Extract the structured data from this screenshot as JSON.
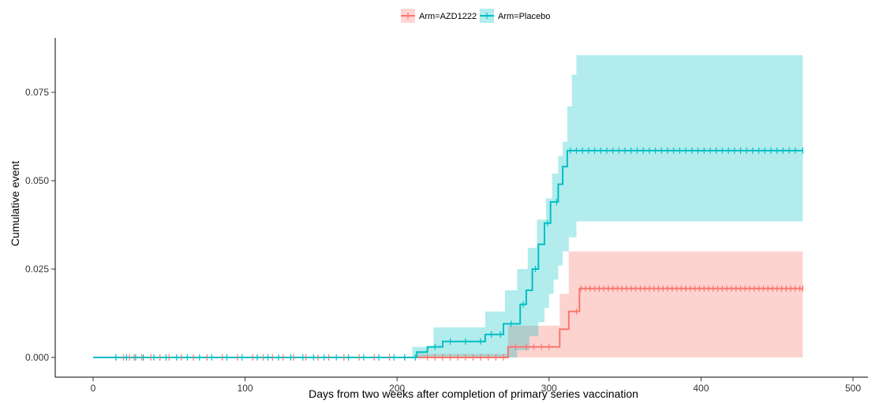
{
  "chart_data": {
    "type": "line",
    "xlabel": "Days from two weeks after completion of primary series vaccination",
    "ylabel": "Cumulative event",
    "xlim": [
      0,
      500
    ],
    "ylim": [
      0,
      0.085
    ],
    "x_ticks": [
      0,
      100,
      200,
      300,
      400,
      500
    ],
    "y_ticks": [
      0,
      0.025,
      0.05,
      0.075
    ],
    "x_tick_labels": [
      "0",
      "100",
      "200",
      "300",
      "400",
      "500"
    ],
    "y_tick_labels": [
      "0.000",
      "0.025",
      "0.050",
      "0.075"
    ],
    "grid": false,
    "legend_position": "top",
    "series": [
      {
        "name": "Arm=AZD1222",
        "color": "#F8766D",
        "steps": [
          [
            0,
            0
          ],
          [
            213,
            0
          ],
          [
            273,
            0.003
          ],
          [
            307,
            0.008
          ],
          [
            313,
            0.013
          ],
          [
            320,
            0.0195
          ],
          [
            467,
            0.0195
          ]
        ],
        "band_upper": [
          [
            0,
            0
          ],
          [
            213,
            0.001
          ],
          [
            273,
            0.009
          ],
          [
            307,
            0.018
          ],
          [
            313,
            0.03
          ],
          [
            467,
            0.03
          ]
        ],
        "band_lower": [
          [
            0,
            0
          ],
          [
            467,
            0
          ]
        ],
        "censor_x": [
          15,
          20,
          24,
          27,
          32,
          38,
          44,
          50,
          58,
          66,
          75,
          85,
          95,
          105,
          112,
          118,
          125,
          132,
          140,
          148,
          155,
          165,
          175,
          185,
          195,
          205,
          220,
          225,
          230,
          235,
          240,
          245,
          250,
          255,
          260,
          265,
          270,
          278,
          285,
          290,
          295,
          300,
          318,
          321,
          324,
          327,
          330,
          333,
          336,
          339,
          342,
          345,
          348,
          351,
          354,
          357,
          360,
          363,
          366,
          369,
          372,
          375,
          378,
          381,
          384,
          387,
          390,
          393,
          396,
          399,
          402,
          405,
          408,
          411,
          414,
          417,
          420,
          423,
          426,
          429,
          432,
          435,
          438,
          441,
          444,
          447,
          450,
          453,
          456,
          459,
          462,
          465,
          467
        ]
      },
      {
        "name": "Arm=Placebo",
        "color": "#00BFC4",
        "steps": [
          [
            0,
            0
          ],
          [
            213,
            0
          ],
          [
            213,
            0.0015
          ],
          [
            220,
            0.003
          ],
          [
            230,
            0.0045
          ],
          [
            258,
            0.0065
          ],
          [
            270,
            0.0095
          ],
          [
            278,
            0.0095
          ],
          [
            281,
            0.015
          ],
          [
            285,
            0.019
          ],
          [
            289,
            0.025
          ],
          [
            293,
            0.032
          ],
          [
            297,
            0.038
          ],
          [
            301,
            0.044
          ],
          [
            306,
            0.049
          ],
          [
            309,
            0.054
          ],
          [
            312,
            0.0585
          ],
          [
            467,
            0.0585
          ]
        ],
        "band_upper": [
          [
            0,
            0
          ],
          [
            210,
            0.003
          ],
          [
            224,
            0.0085
          ],
          [
            258,
            0.013
          ],
          [
            271,
            0.019
          ],
          [
            279,
            0.025
          ],
          [
            286,
            0.031
          ],
          [
            292,
            0.039
          ],
          [
            298,
            0.045
          ],
          [
            302,
            0.052
          ],
          [
            306,
            0.057
          ],
          [
            309,
            0.061
          ],
          [
            312,
            0.071
          ],
          [
            315,
            0.08
          ],
          [
            318,
            0.0855
          ],
          [
            467,
            0.0855
          ]
        ],
        "band_lower": [
          [
            0,
            0
          ],
          [
            278,
            0
          ],
          [
            279,
            0.002
          ],
          [
            287,
            0.006
          ],
          [
            293,
            0.01
          ],
          [
            297,
            0.014
          ],
          [
            300,
            0.018
          ],
          [
            303,
            0.022
          ],
          [
            306,
            0.026
          ],
          [
            309,
            0.03
          ],
          [
            313,
            0.034
          ],
          [
            318,
            0.0385
          ],
          [
            467,
            0.0385
          ]
        ],
        "censor_x": [
          15,
          22,
          28,
          33,
          40,
          48,
          55,
          62,
          70,
          78,
          88,
          98,
          108,
          115,
          122,
          130,
          138,
          145,
          152,
          160,
          168,
          178,
          188,
          198,
          205,
          212,
          225,
          235,
          245,
          255,
          262,
          268,
          275,
          283,
          291,
          299,
          305,
          314,
          318,
          322,
          326,
          330,
          334,
          338,
          342,
          346,
          350,
          354,
          358,
          362,
          366,
          370,
          374,
          378,
          382,
          386,
          390,
          394,
          398,
          402,
          406,
          410,
          414,
          418,
          422,
          426,
          430,
          434,
          438,
          442,
          446,
          450,
          454,
          458,
          462,
          467
        ]
      }
    ]
  }
}
